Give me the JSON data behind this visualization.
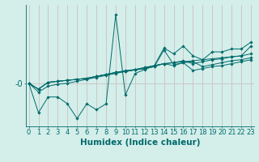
{
  "bg_color": "#d4eeea",
  "line_color": "#006b6b",
  "grid_color": "#c8b8b8",
  "xlabel": "Humidex (Indice chaleur)",
  "xlabel_fontsize": 7.5,
  "tick_fontsize": 6,
  "ylabel_text": "-0",
  "ylabel_fontsize": 7,
  "x": [
    0,
    1,
    2,
    3,
    4,
    5,
    6,
    7,
    8,
    9,
    10,
    11,
    12,
    13,
    14,
    15,
    16,
    17,
    18,
    19,
    20,
    21,
    22,
    23
  ],
  "series": [
    [
      0.0,
      -1.5,
      -0.7,
      -0.7,
      -1.05,
      -1.8,
      -1.05,
      -1.35,
      -1.05,
      3.5,
      -0.6,
      0.5,
      0.7,
      0.9,
      1.8,
      1.5,
      1.9,
      1.4,
      1.2,
      1.6,
      1.6,
      1.75,
      1.75,
      2.1
    ],
    [
      0.0,
      -0.45,
      -0.15,
      -0.05,
      0.0,
      0.1,
      0.2,
      0.3,
      0.4,
      0.5,
      0.6,
      0.7,
      0.8,
      0.9,
      1.0,
      1.05,
      1.1,
      1.15,
      1.2,
      1.25,
      1.3,
      1.35,
      1.4,
      1.5
    ],
    [
      0.0,
      -0.3,
      0.05,
      0.1,
      0.15,
      0.2,
      0.25,
      0.35,
      0.45,
      0.55,
      0.65,
      0.7,
      0.8,
      0.9,
      1.0,
      1.05,
      1.15,
      1.0,
      1.1,
      1.2,
      1.25,
      1.35,
      1.4,
      1.9
    ],
    [
      0.0,
      -0.3,
      0.05,
      0.1,
      0.15,
      0.2,
      0.25,
      0.35,
      0.45,
      0.55,
      0.6,
      0.68,
      0.75,
      0.85,
      1.7,
      0.95,
      1.05,
      1.1,
      0.85,
      0.95,
      1.05,
      1.15,
      1.2,
      1.3
    ],
    [
      0.0,
      -0.3,
      0.05,
      0.1,
      0.15,
      0.2,
      0.25,
      0.35,
      0.45,
      0.55,
      0.6,
      0.68,
      0.75,
      0.85,
      1.0,
      0.9,
      1.05,
      0.65,
      0.75,
      0.85,
      0.9,
      1.0,
      1.1,
      1.2
    ]
  ],
  "ylim": [
    -2.2,
    4.0
  ],
  "xlim": [
    -0.3,
    23.3
  ]
}
